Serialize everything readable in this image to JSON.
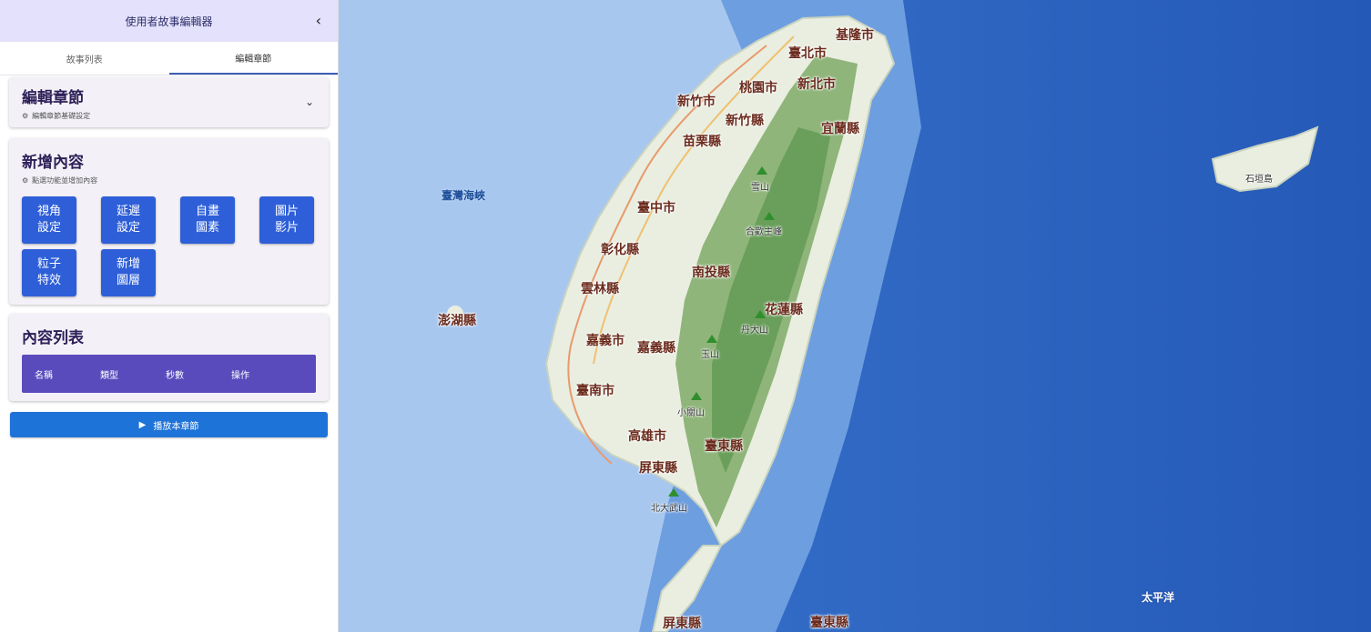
{
  "app": {
    "title": "使用者故事編輯器",
    "collapse_icon": "‹"
  },
  "tabs": [
    {
      "label": "故事列表",
      "active": false
    },
    {
      "label": "編輯章節",
      "active": true
    }
  ],
  "chapter_card": {
    "title": "編輯章節",
    "subtitle": "編輯章節基礎設定",
    "expand_icon": "⌄"
  },
  "add_content_card": {
    "title": "新增內容",
    "subtitle": "點選功能並增加內容",
    "buttons": [
      {
        "label": "視角\n設定"
      },
      {
        "label": "延遲\n設定"
      },
      {
        "label": "自畫\n圖素"
      },
      {
        "label": "圖片\n影片"
      },
      {
        "label": "粒子\n特效"
      },
      {
        "label": "新增\n圖層"
      }
    ]
  },
  "content_list_card": {
    "title": "內容列表",
    "columns": [
      "名稱",
      "類型",
      "秒數",
      "操作"
    ]
  },
  "play_button": {
    "label": "播放本章節",
    "icon": "▶"
  },
  "map": {
    "labels": {
      "keelung": "基隆市",
      "taipei": "臺北市",
      "taoyuan": "桃園市",
      "newtaipei": "新北市",
      "hsinchu_city": "新竹市",
      "hsinchu_county": "新竹縣",
      "yilan": "宜蘭縣",
      "miaoli": "苗栗縣",
      "taichung": "臺中市",
      "changhua": "彰化縣",
      "nantou": "南投縣",
      "yunlin": "雲林縣",
      "hualien": "花蓮縣",
      "chiayi_city": "嘉義市",
      "chiayi_county": "嘉義縣",
      "tainan": "臺南市",
      "kaohsiung": "高雄市",
      "taitung": "臺東縣",
      "pingtung": "屏東縣",
      "penghu": "澎湖縣",
      "pingtung2": "屏東縣",
      "taitung2": "臺東縣"
    },
    "peaks": {
      "xueshan": "雪山",
      "hehuan": "合歡主峰",
      "dandashan": "丹大山",
      "yushan": "玉山",
      "xiaoguanshan": "小關山",
      "beidawu": "北大武山"
    },
    "seas": {
      "strait": "臺灣海峽",
      "pacific": "太平洋",
      "ishigaki": "石垣島"
    }
  }
}
